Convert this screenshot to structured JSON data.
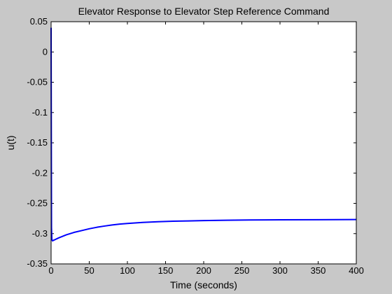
{
  "chart_data": {
    "type": "line",
    "title": "Elevator Response to Elevator Step Reference Command",
    "xlabel": "Time (seconds)",
    "ylabel": "u(t)",
    "xlim": [
      0,
      400
    ],
    "ylim": [
      -0.35,
      0.05
    ],
    "xticks": [
      0,
      50,
      100,
      150,
      200,
      250,
      300,
      350,
      400
    ],
    "xtick_labels": [
      "0",
      "50",
      "100",
      "150",
      "200",
      "250",
      "300",
      "350",
      "400"
    ],
    "yticks": [
      0.05,
      0,
      -0.05,
      -0.1,
      -0.15,
      -0.2,
      -0.25,
      -0.3,
      -0.35
    ],
    "ytick_labels": [
      "0.05",
      "0",
      "-0.05",
      "-0.1",
      "-0.15",
      "-0.2",
      "-0.25",
      "-0.3",
      "-0.35"
    ],
    "grid": false,
    "series": [
      {
        "color": "#0000ff",
        "x": [
          0,
          0.5,
          1,
          2,
          3,
          5,
          10,
          20,
          30,
          40,
          50,
          60,
          70,
          80,
          90,
          100,
          120,
          140,
          160,
          180,
          200,
          230,
          260,
          300,
          350,
          400
        ],
        "y": [
          0.04,
          -0.29,
          -0.31,
          -0.312,
          -0.311,
          -0.31,
          -0.307,
          -0.302,
          -0.298,
          -0.295,
          -0.292,
          -0.2895,
          -0.2875,
          -0.2857,
          -0.2843,
          -0.2832,
          -0.2815,
          -0.2803,
          -0.2795,
          -0.279,
          -0.2784,
          -0.2779,
          -0.2775,
          -0.2772,
          -0.277,
          -0.2768
        ]
      }
    ]
  }
}
